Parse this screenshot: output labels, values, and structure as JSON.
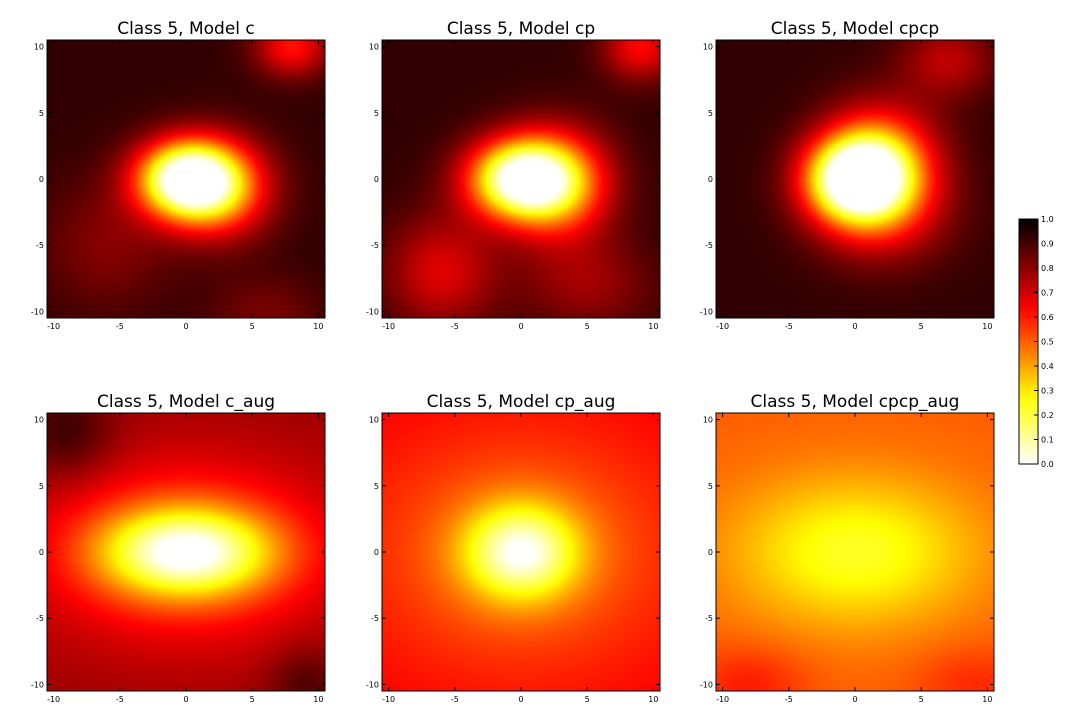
{
  "chart_data": {
    "type": "heatmap",
    "colormap": "hot_r",
    "value_range": [
      0.0,
      1.0
    ],
    "xlim": [
      -10.5,
      10.5
    ],
    "ylim": [
      -10.5,
      10.5
    ],
    "xticks": [
      "-10",
      "-5",
      "0",
      "5",
      "10"
    ],
    "yticks": [
      "10",
      "5",
      "0",
      "-5",
      "-10"
    ],
    "colorbar": {
      "ticks": [
        "1.0",
        "0.9",
        "0.8",
        "0.7",
        "0.6",
        "0.5",
        "0.4",
        "0.3",
        "0.2",
        "0.1",
        "0.0"
      ]
    },
    "panels": [
      {
        "title": "Class 5, Model c",
        "background": 0.93,
        "blobs": [
          {
            "x": 0,
            "y": 0,
            "sx": 2.6,
            "sy": 2.0,
            "amp": 0.93
          },
          {
            "x": 2.5,
            "y": -0.8,
            "sx": 2.8,
            "sy": 2.6,
            "amp": 0.45
          },
          {
            "x": -6,
            "y": -5,
            "sx": 3.5,
            "sy": 3.5,
            "amp": 0.12
          },
          {
            "x": 8,
            "y": 10,
            "sx": 2.0,
            "sy": 1.6,
            "amp": 0.32
          },
          {
            "x": 6,
            "y": -10,
            "sx": 3.0,
            "sy": 2.0,
            "amp": 0.1
          }
        ]
      },
      {
        "title": "Class 5, Model cp",
        "background": 0.93,
        "blobs": [
          {
            "x": 0,
            "y": 0,
            "sx": 2.8,
            "sy": 2.1,
            "amp": 0.93
          },
          {
            "x": 3.0,
            "y": -0.5,
            "sx": 2.8,
            "sy": 3.0,
            "amp": 0.42
          },
          {
            "x": -6,
            "y": -7,
            "sx": 3.0,
            "sy": 3.0,
            "amp": 0.25
          },
          {
            "x": 9,
            "y": 10,
            "sx": 2.0,
            "sy": 1.8,
            "amp": 0.3
          },
          {
            "x": 5,
            "y": -8,
            "sx": 3.5,
            "sy": 2.5,
            "amp": 0.15
          }
        ]
      },
      {
        "title": "Class 5, Model cpcp",
        "background": 0.93,
        "blobs": [
          {
            "x": 0,
            "y": 0,
            "sx": 2.6,
            "sy": 2.2,
            "amp": 0.93
          },
          {
            "x": 2.0,
            "y": 1.5,
            "sx": 3.0,
            "sy": 3.0,
            "amp": 0.45
          },
          {
            "x": 2.0,
            "y": -2.5,
            "sx": 3.5,
            "sy": 2.8,
            "amp": 0.25
          },
          {
            "x": 7,
            "y": 9,
            "sx": 2.5,
            "sy": 2.0,
            "amp": 0.2
          }
        ]
      },
      {
        "title": "Class 5, Model c_aug",
        "background": 0.78,
        "blobs": [
          {
            "x": 0,
            "y": 0,
            "sx": 4.5,
            "sy": 2.3,
            "amp": 0.6
          },
          {
            "x": 0,
            "y": 0,
            "sx": 8.0,
            "sy": 5.0,
            "amp": 0.25
          },
          {
            "x": -9,
            "y": 9,
            "sx": 2.5,
            "sy": 2.5,
            "amp": -0.15
          },
          {
            "x": 9,
            "y": -10,
            "sx": 2.0,
            "sy": 2.0,
            "amp": -0.12
          }
        ]
      },
      {
        "title": "Class 5, Model cp_aug",
        "background": 0.66,
        "blobs": [
          {
            "x": 0,
            "y": 0,
            "sx": 3.0,
            "sy": 2.5,
            "amp": 0.5
          },
          {
            "x": 0,
            "y": 0,
            "sx": 9.0,
            "sy": 7.0,
            "amp": 0.18
          }
        ]
      },
      {
        "title": "Class 5, Model cpcp_aug",
        "background": 0.5,
        "blobs": [
          {
            "x": 0,
            "y": 0,
            "sx": 6.5,
            "sy": 4.0,
            "amp": 0.27
          },
          {
            "x": -8,
            "y": -10,
            "sx": 3.0,
            "sy": 2.0,
            "amp": -0.1
          },
          {
            "x": 9,
            "y": -10,
            "sx": 3.0,
            "sy": 2.0,
            "amp": -0.08
          }
        ]
      }
    ]
  }
}
